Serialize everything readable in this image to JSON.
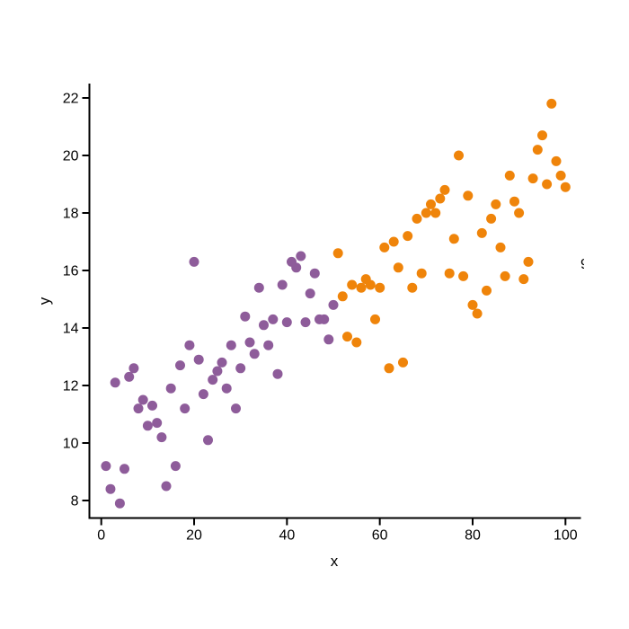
{
  "figure": {
    "background": "#ffffff",
    "axis_color": "#000000",
    "right_edge_fragment": "9"
  },
  "chart_data": {
    "type": "scatter",
    "title": "",
    "xlabel": "x",
    "ylabel": "y",
    "xlim": [
      0,
      100
    ],
    "ylim": [
      8,
      22
    ],
    "x_ticks": [
      0,
      20,
      40,
      60,
      80,
      100
    ],
    "y_ticks": [
      8,
      10,
      12,
      14,
      16,
      18,
      20,
      22
    ],
    "grid": false,
    "legend": "none",
    "point_radius": 5.5,
    "series": [
      {
        "name": "purple",
        "color": "#8E5C9A",
        "points": [
          [
            1,
            9.2
          ],
          [
            2,
            8.4
          ],
          [
            3,
            12.1
          ],
          [
            4,
            7.9
          ],
          [
            5,
            9.1
          ],
          [
            6,
            12.3
          ],
          [
            7,
            12.6
          ],
          [
            8,
            11.2
          ],
          [
            9,
            11.5
          ],
          [
            10,
            10.6
          ],
          [
            11,
            11.3
          ],
          [
            12,
            10.7
          ],
          [
            13,
            10.2
          ],
          [
            14,
            8.5
          ],
          [
            15,
            11.9
          ],
          [
            16,
            9.2
          ],
          [
            17,
            12.7
          ],
          [
            18,
            11.2
          ],
          [
            19,
            13.4
          ],
          [
            20,
            16.3
          ],
          [
            21,
            12.9
          ],
          [
            22,
            11.7
          ],
          [
            23,
            10.1
          ],
          [
            24,
            12.2
          ],
          [
            25,
            12.5
          ],
          [
            26,
            12.8
          ],
          [
            27,
            11.9
          ],
          [
            28,
            13.4
          ],
          [
            29,
            11.2
          ],
          [
            30,
            12.6
          ],
          [
            31,
            14.4
          ],
          [
            32,
            13.5
          ],
          [
            33,
            13.1
          ],
          [
            34,
            15.4
          ],
          [
            35,
            14.1
          ],
          [
            36,
            13.4
          ],
          [
            37,
            14.3
          ],
          [
            38,
            12.4
          ],
          [
            39,
            15.5
          ],
          [
            40,
            14.2
          ],
          [
            41,
            16.3
          ],
          [
            42,
            16.1
          ],
          [
            43,
            16.5
          ],
          [
            44,
            14.2
          ],
          [
            45,
            15.2
          ],
          [
            46,
            15.9
          ],
          [
            47,
            14.3
          ],
          [
            48,
            14.3
          ],
          [
            49,
            13.6
          ],
          [
            50,
            14.8
          ]
        ]
      },
      {
        "name": "orange",
        "color": "#EF840A",
        "points": [
          [
            51,
            16.6
          ],
          [
            52,
            15.1
          ],
          [
            53,
            13.7
          ],
          [
            54,
            15.5
          ],
          [
            55,
            13.5
          ],
          [
            56,
            15.4
          ],
          [
            57,
            15.7
          ],
          [
            58,
            15.5
          ],
          [
            59,
            14.3
          ],
          [
            60,
            15.4
          ],
          [
            61,
            16.8
          ],
          [
            62,
            12.6
          ],
          [
            63,
            17.0
          ],
          [
            64,
            16.1
          ],
          [
            65,
            12.8
          ],
          [
            66,
            17.2
          ],
          [
            67,
            15.4
          ],
          [
            68,
            17.8
          ],
          [
            69,
            15.9
          ],
          [
            70,
            18.0
          ],
          [
            71,
            18.3
          ],
          [
            72,
            18.0
          ],
          [
            73,
            18.5
          ],
          [
            74,
            18.8
          ],
          [
            75,
            15.9
          ],
          [
            76,
            17.1
          ],
          [
            77,
            20.0
          ],
          [
            78,
            15.8
          ],
          [
            79,
            18.6
          ],
          [
            80,
            14.8
          ],
          [
            81,
            14.5
          ],
          [
            82,
            17.3
          ],
          [
            83,
            15.3
          ],
          [
            84,
            17.8
          ],
          [
            85,
            18.3
          ],
          [
            86,
            16.8
          ],
          [
            87,
            15.8
          ],
          [
            88,
            19.3
          ],
          [
            89,
            18.4
          ],
          [
            90,
            18.0
          ],
          [
            91,
            15.7
          ],
          [
            92,
            16.3
          ],
          [
            93,
            19.2
          ],
          [
            94,
            20.2
          ],
          [
            95,
            20.7
          ],
          [
            96,
            19.0
          ],
          [
            97,
            21.8
          ],
          [
            98,
            19.8
          ],
          [
            99,
            19.3
          ],
          [
            100,
            18.9
          ]
        ]
      }
    ]
  }
}
